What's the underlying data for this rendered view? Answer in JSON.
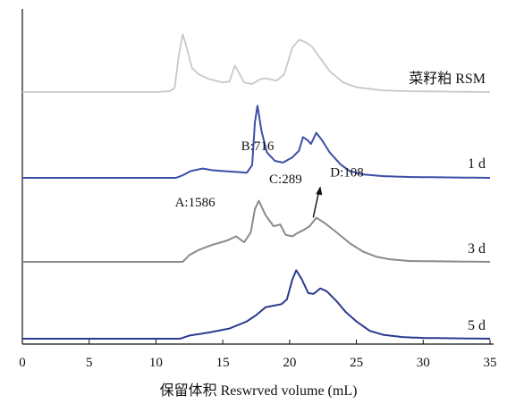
{
  "chart_data": {
    "type": "line",
    "xlabel": "保留体积 Reswrved volume (mL)",
    "ylabel": "",
    "xlim": [
      0,
      35
    ],
    "xticks": [
      0,
      5,
      10,
      15,
      20,
      25,
      30,
      35
    ],
    "grid": false,
    "series": [
      {
        "name": "菜籽粕 RSM",
        "color": "#c8c8c8",
        "points": [
          [
            0,
            0
          ],
          [
            10,
            0
          ],
          [
            11,
            0.01
          ],
          [
            11.4,
            0.05
          ],
          [
            11.7,
            0.45
          ],
          [
            12,
            0.72
          ],
          [
            12.3,
            0.55
          ],
          [
            12.7,
            0.3
          ],
          [
            13.2,
            0.22
          ],
          [
            14,
            0.16
          ],
          [
            15,
            0.12
          ],
          [
            15.5,
            0.13
          ],
          [
            15.9,
            0.33
          ],
          [
            16.2,
            0.24
          ],
          [
            16.6,
            0.12
          ],
          [
            17.2,
            0.1
          ],
          [
            17.8,
            0.16
          ],
          [
            18.3,
            0.17
          ],
          [
            19,
            0.14
          ],
          [
            19.6,
            0.22
          ],
          [
            20.2,
            0.55
          ],
          [
            20.7,
            0.65
          ],
          [
            21.2,
            0.62
          ],
          [
            21.7,
            0.56
          ],
          [
            22.3,
            0.42
          ],
          [
            23,
            0.26
          ],
          [
            24,
            0.12
          ],
          [
            25,
            0.06
          ],
          [
            27,
            0.02
          ],
          [
            29,
            0.01
          ],
          [
            35,
            0
          ]
        ]
      },
      {
        "name": "1 d",
        "color": "#3c4ea8",
        "points": [
          [
            0,
            0
          ],
          [
            11.5,
            0
          ],
          [
            12,
            0.03
          ],
          [
            12.6,
            0.08
          ],
          [
            13.5,
            0.11
          ],
          [
            14.2,
            0.09
          ],
          [
            15,
            0.08
          ],
          [
            16,
            0.07
          ],
          [
            16.8,
            0.06
          ],
          [
            17.2,
            0.15
          ],
          [
            17.4,
            0.65
          ],
          [
            17.6,
            0.85
          ],
          [
            17.9,
            0.55
          ],
          [
            18.3,
            0.3
          ],
          [
            18.9,
            0.2
          ],
          [
            19.5,
            0.18
          ],
          [
            20.2,
            0.24
          ],
          [
            20.7,
            0.32
          ],
          [
            21,
            0.48
          ],
          [
            21.3,
            0.45
          ],
          [
            21.6,
            0.4
          ],
          [
            22,
            0.53
          ],
          [
            22.4,
            0.45
          ],
          [
            23,
            0.3
          ],
          [
            23.8,
            0.16
          ],
          [
            24.5,
            0.08
          ],
          [
            25.5,
            0.04
          ],
          [
            27,
            0.02
          ],
          [
            29,
            0.01
          ],
          [
            35,
            0
          ]
        ]
      },
      {
        "name": "3 d",
        "color": "#8a8a8a",
        "points": [
          [
            0,
            0
          ],
          [
            12,
            0
          ],
          [
            12.5,
            0.08
          ],
          [
            13.2,
            0.14
          ],
          [
            14.2,
            0.2
          ],
          [
            15.3,
            0.25
          ],
          [
            16,
            0.3
          ],
          [
            16.6,
            0.23
          ],
          [
            17.1,
            0.35
          ],
          [
            17.4,
            0.62
          ],
          [
            17.7,
            0.72
          ],
          [
            18.2,
            0.55
          ],
          [
            18.8,
            0.42
          ],
          [
            19.3,
            0.44
          ],
          [
            19.7,
            0.32
          ],
          [
            20.2,
            0.3
          ],
          [
            20.6,
            0.34
          ],
          [
            21.1,
            0.38
          ],
          [
            21.5,
            0.42
          ],
          [
            22,
            0.52
          ],
          [
            22.6,
            0.46
          ],
          [
            23.5,
            0.35
          ],
          [
            24.5,
            0.22
          ],
          [
            25.5,
            0.12
          ],
          [
            26.5,
            0.06
          ],
          [
            27.5,
            0.03
          ],
          [
            29,
            0.01
          ],
          [
            35,
            0
          ]
        ]
      },
      {
        "name": "5 d",
        "color": "#2b3a8f",
        "points": [
          [
            0,
            0
          ],
          [
            11.8,
            0
          ],
          [
            12.5,
            0.04
          ],
          [
            14,
            0.08
          ],
          [
            15.5,
            0.13
          ],
          [
            16.8,
            0.22
          ],
          [
            17.5,
            0.3
          ],
          [
            18.2,
            0.4
          ],
          [
            18.8,
            0.42
          ],
          [
            19.4,
            0.44
          ],
          [
            19.8,
            0.5
          ],
          [
            20.2,
            0.75
          ],
          [
            20.5,
            0.87
          ],
          [
            20.9,
            0.76
          ],
          [
            21.4,
            0.58
          ],
          [
            21.8,
            0.57
          ],
          [
            22.3,
            0.64
          ],
          [
            22.8,
            0.6
          ],
          [
            23.5,
            0.48
          ],
          [
            24.2,
            0.34
          ],
          [
            25,
            0.22
          ],
          [
            26,
            0.1
          ],
          [
            27,
            0.05
          ],
          [
            28.5,
            0.02
          ],
          [
            30,
            0.01
          ],
          [
            35,
            0
          ]
        ]
      }
    ],
    "annotations": [
      {
        "text": "A:1586",
        "x": 15.9,
        "series": "3 d"
      },
      {
        "text": "B:716",
        "x": 17.6,
        "series": "3 d"
      },
      {
        "text": "C:289",
        "x": 19.3,
        "series": "3 d"
      },
      {
        "text": "D:108",
        "x": 21.7,
        "series": "3 d"
      }
    ]
  }
}
